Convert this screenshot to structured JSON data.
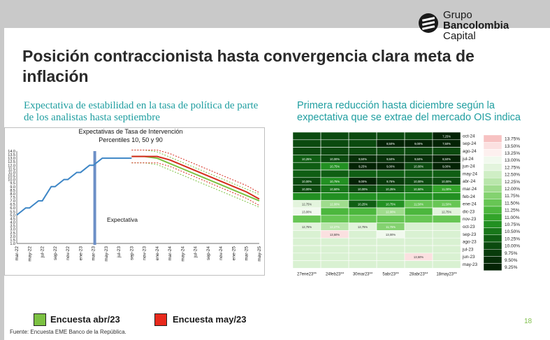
{
  "logo": {
    "line1": "Grupo",
    "line2": "Bancolombia",
    "line3": "Capital"
  },
  "title": "Posición contraccionista hasta convergencia clara meta de inflación",
  "left_subtitle": "Expectativa de estabilidad en la tasa de política de parte de los analistas hasta septiembre",
  "right_subtitle": "Primera reducción hasta diciembre según la expectativa que se extrae del mercado OIS indica",
  "legend": {
    "item1": "Encuesta abr/23",
    "item2": "Encuesta may/23",
    "color1": "#7cc142",
    "color2": "#e8291c"
  },
  "footer": "Fuente: Encuesta EME Banco de la República.",
  "page_number": "18",
  "chart_data": [
    {
      "type": "line",
      "title": "Expectativas de Tasa de Intervención\nPercentiles 10, 50 y 90",
      "annotation": "Expectativa",
      "ylim": [
        1.0,
        14.0
      ],
      "yticks": [
        "14.0",
        "13.5",
        "13.0",
        "12.5",
        "12.0",
        "11.5",
        "11.0",
        "10.5",
        "10.0",
        "9.5",
        "9.0",
        "8.5",
        "8.0",
        "7.5",
        "7.0",
        "6.5",
        "6.0",
        "5.5",
        "5.0",
        "4.5",
        "4.0",
        "3.5",
        "3.0",
        "2.5",
        "2.0",
        "1.5",
        "1.0"
      ],
      "categories": [
        "mar-22",
        "may-22",
        "jul-22",
        "sep-22",
        "nov-22",
        "ene-23",
        "mar-23",
        "may-23",
        "jul-23",
        "sep-23",
        "nov-23",
        "ene-24",
        "mar-24",
        "may-24",
        "jul-24",
        "sep-24",
        "nov-24",
        "ene-25",
        "mar-25",
        "may-25"
      ],
      "series": [
        {
          "name": "Histórico",
          "values": [
            5.0,
            6.0,
            7.0,
            9.0,
            10.0,
            11.0,
            12.0,
            13.0,
            13.0,
            13.0,
            null,
            null,
            null,
            null,
            null,
            null,
            null,
            null,
            null,
            null
          ]
        },
        {
          "name": "Encuesta abr/23",
          "values": [
            null,
            null,
            null,
            null,
            null,
            null,
            null,
            null,
            null,
            13.25,
            13.25,
            13.0,
            12.25,
            11.5,
            10.75,
            10.0,
            9.25,
            8.5,
            7.75,
            7.0
          ]
        },
        {
          "name": "Encuesta may/23",
          "values": [
            null,
            null,
            null,
            null,
            null,
            null,
            null,
            null,
            null,
            13.25,
            13.25,
            13.25,
            12.75,
            12.0,
            11.25,
            10.5,
            9.75,
            9.0,
            8.25,
            7.25
          ]
        }
      ]
    },
    {
      "type": "heatmap",
      "x": [
        "27ene23**",
        "24feb23**",
        "30mar23**",
        "5abr23**",
        "28abr23**",
        "18may23**"
      ],
      "y": [
        "oct-24",
        "sep-24",
        "ago-24",
        "jul-24",
        "jun-24",
        "may-24",
        "abr-24",
        "mar-24",
        "feb-24",
        "ene-24",
        "dic-23",
        "nov-23",
        "oct-23",
        "sep-23",
        "ago-23",
        "jul-23",
        "jun-23",
        "may-23"
      ],
      "cells": [
        [
          "",
          "",
          "",
          "",
          "",
          "7,25%"
        ],
        [
          "",
          "",
          "",
          "8,50%",
          "9,00%",
          "7,50%"
        ],
        [
          "",
          "",
          "",
          "",
          "",
          ""
        ],
        [
          "10,25%",
          "10,00%",
          "9,50%",
          "9,50%",
          "9,50%",
          "8,50%"
        ],
        [
          "",
          "10,75%",
          "9,25%",
          "9,00%",
          "10,00%",
          "9,00%"
        ],
        [
          "",
          "",
          "",
          "",
          "",
          ""
        ],
        [
          "10,00%",
          "10,75%",
          "9,00%",
          "9,75%",
          "10,00%",
          "10,00%"
        ],
        [
          "10,00%",
          "10,50%",
          "10,00%",
          "10,25%",
          "10,50%",
          "11,00%"
        ],
        [
          "",
          "",
          "",
          "",
          "",
          ""
        ],
        [
          "12,75%",
          "12,00%",
          "10,25%",
          "10,75%",
          "11,50%",
          "11,50%"
        ],
        [
          "13,00%",
          "",
          "",
          "12,00%",
          "",
          "12,75%"
        ],
        [
          "",
          "",
          "",
          "",
          "",
          ""
        ],
        [
          "12,75%",
          "12,27%",
          "12,75%",
          "11,75%",
          "",
          ""
        ],
        [
          "",
          "13,50%",
          "",
          "13,00%",
          "",
          ""
        ],
        [
          "",
          "",
          "",
          "",
          "",
          ""
        ],
        [
          "",
          "",
          "",
          "",
          "",
          ""
        ],
        [
          "",
          "",
          "",
          "",
          "13,50%",
          ""
        ],
        [
          "",
          "",
          "",
          "",
          "",
          ""
        ]
      ],
      "scale": [
        "13.75%",
        "13.50%",
        "13.25%",
        "13.00%",
        "12.75%",
        "12.50%",
        "12.25%",
        "12.00%",
        "11.75%",
        "11.50%",
        "11.25%",
        "11.00%",
        "10.75%",
        "10.50%",
        "10.25%",
        "10.00%",
        "9.75%",
        "9.50%",
        "9.25%"
      ],
      "scale_colors": [
        "#f7c2c2",
        "#fbe0e0",
        "#fdf0ef",
        "#f1f9ee",
        "#e3f4dd",
        "#cfeec5",
        "#b9e6ab",
        "#9fdc8d",
        "#84d270",
        "#67c654",
        "#4cb73d",
        "#33a42a",
        "#229022",
        "#18771a",
        "#0f5e13",
        "#0b4a0f",
        "#083b0b",
        "#062e08",
        "#042305"
      ]
    }
  ]
}
